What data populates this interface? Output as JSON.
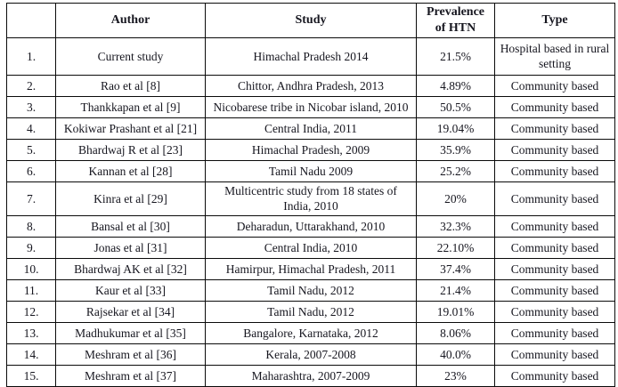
{
  "table": {
    "headers": {
      "no": "",
      "author": "Author",
      "study": "Study",
      "prevalence": "Prevalence of HTN",
      "type": "Type"
    },
    "rows": [
      {
        "no": "1.",
        "author": "Current study",
        "study": "Himachal Pradesh 2014",
        "prevalence": "21.5%",
        "type": "Hospital based in rural setting"
      },
      {
        "no": "2.",
        "author": "Rao et al [8]",
        "study": "Chittor, Andhra Pradesh, 2013",
        "prevalence": "4.89%",
        "type": "Community based"
      },
      {
        "no": "3.",
        "author": "Thankkapan et al [9]",
        "study": "Nicobarese tribe in Nicobar island, 2010",
        "prevalence": "50.5%",
        "type": "Community based"
      },
      {
        "no": "4.",
        "author": "Kokiwar Prashant et al [21]",
        "study": "Central India, 2011",
        "prevalence": "19.04%",
        "type": "Community based"
      },
      {
        "no": "5.",
        "author": "Bhardwaj R et al [23]",
        "study": "Himachal Pradesh, 2009",
        "prevalence": "35.9%",
        "type": "Community based"
      },
      {
        "no": "6.",
        "author": "Kannan et al [28]",
        "study": "Tamil Nadu 2009",
        "prevalence": "25.2%",
        "type": "Community based"
      },
      {
        "no": "7.",
        "author": "Kinra et al [29]",
        "study": "Multicentric study from 18 states of India, 2010",
        "prevalence": "20%",
        "type": "Community based"
      },
      {
        "no": "8.",
        "author": "Bansal et al [30]",
        "study": "Deharadun, Uttarakhand, 2010",
        "prevalence": "32.3%",
        "type": "Community based"
      },
      {
        "no": "9.",
        "author": "Jonas et al [31]",
        "study": "Central India, 2010",
        "prevalence": "22.10%",
        "type": "Community based"
      },
      {
        "no": "10.",
        "author": "Bhardwaj AK et al [32]",
        "study": "Hamirpur, Himachal Pradesh, 2011",
        "prevalence": "37.4%",
        "type": "Community based"
      },
      {
        "no": "11.",
        "author": "Kaur et al [33]",
        "study": "Tamil Nadu, 2012",
        "prevalence": "21.4%",
        "type": "Community based"
      },
      {
        "no": "12.",
        "author": "Rajsekar et al [34]",
        "study": "Tamil Nadu, 2012",
        "prevalence": "19.01%",
        "type": "Community based"
      },
      {
        "no": "13.",
        "author": "Madhukumar et al [35]",
        "study": "Bangalore, Karnataka, 2012",
        "prevalence": "8.06%",
        "type": "Community based"
      },
      {
        "no": "14.",
        "author": "Meshram et al [36]",
        "study": "Kerala, 2007-2008",
        "prevalence": "40.0%",
        "type": "Community based"
      },
      {
        "no": "15.",
        "author": "Meshram et al [37]",
        "study": "Maharashtra, 2007-2009",
        "prevalence": "23%",
        "type": "Community based"
      }
    ]
  }
}
